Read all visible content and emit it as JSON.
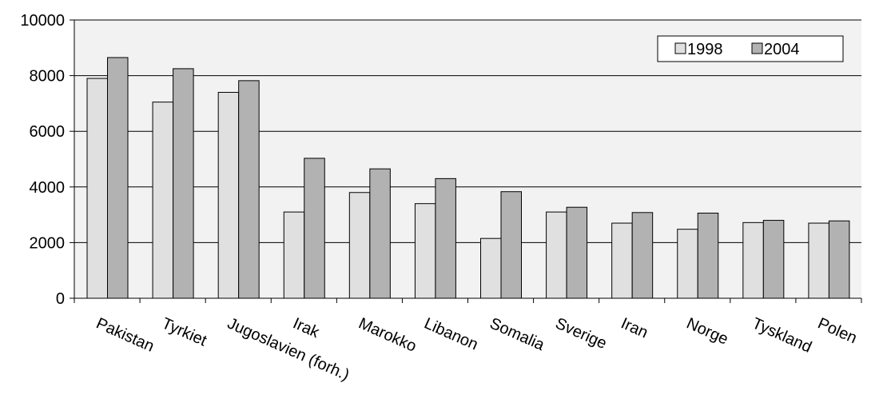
{
  "chart_data": {
    "type": "bar",
    "title": "",
    "xlabel": "",
    "ylabel": "",
    "ylim": [
      0,
      10000
    ],
    "yticks": [
      0,
      2000,
      4000,
      6000,
      8000,
      10000
    ],
    "grid": true,
    "legend_position": "top-right",
    "categories": [
      "Pakistan",
      "Tyrkiet",
      "Jugoslavien (forh.)",
      "Irak",
      "Marokko",
      "Libanon",
      "Somalia",
      "Sverige",
      "Iran",
      "Norge",
      "Tyskland",
      "Polen"
    ],
    "series": [
      {
        "name": "1998",
        "color": "#e0e0e0",
        "values": [
          7900,
          7050,
          7400,
          3100,
          3800,
          3400,
          2150,
          3100,
          2700,
          2480,
          2720,
          2700
        ]
      },
      {
        "name": "2004",
        "color": "#b2b2b2",
        "values": [
          8650,
          8250,
          7820,
          5030,
          4650,
          4300,
          3830,
          3270,
          3080,
          3060,
          2800,
          2780
        ]
      }
    ]
  },
  "colors": {
    "plot_background": "#f2f2f2",
    "gridline": "#000000",
    "bar_stroke": "#000000"
  }
}
